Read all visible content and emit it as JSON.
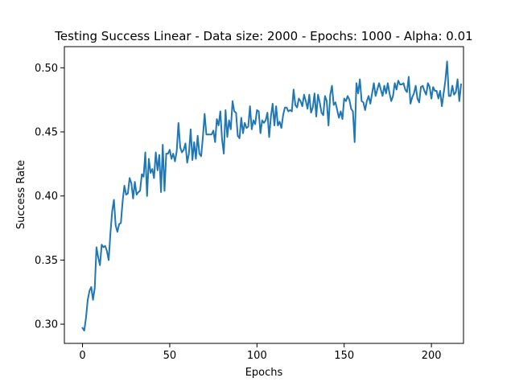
{
  "chart_data": {
    "type": "line",
    "title": "Testing Success Linear - Data size: 2000 - Epochs: 1000 - Alpha: 0.01",
    "xlabel": "Epochs",
    "ylabel": "Success Rate",
    "xlim": [
      -10.4,
      218.4
    ],
    "ylim": [
      0.285,
      0.5165
    ],
    "xticks": [
      0,
      50,
      100,
      150,
      200
    ],
    "xtick_labels": [
      "0",
      "50",
      "100",
      "150",
      "200"
    ],
    "yticks": [
      0.3,
      0.35,
      0.4,
      0.45,
      0.5
    ],
    "ytick_labels": [
      "0.30",
      "0.35",
      "0.40",
      "0.45",
      "0.50"
    ],
    "grid": false,
    "legend": "none",
    "line_color": "#1f77b4",
    "series": [
      {
        "x_start": 0,
        "x_step": 1,
        "values": [
          0.297,
          0.295,
          0.305,
          0.319,
          0.326,
          0.329,
          0.319,
          0.328,
          0.36,
          0.352,
          0.346,
          0.362,
          0.36,
          0.361,
          0.357,
          0.35,
          0.371,
          0.388,
          0.397,
          0.377,
          0.372,
          0.378,
          0.379,
          0.396,
          0.408,
          0.401,
          0.402,
          0.414,
          0.41,
          0.398,
          0.411,
          0.401,
          0.403,
          0.404,
          0.417,
          0.415,
          0.434,
          0.4,
          0.429,
          0.418,
          0.421,
          0.414,
          0.434,
          0.42,
          0.432,
          0.403,
          0.44,
          0.404,
          0.433,
          0.433,
          0.436,
          0.429,
          0.433,
          0.427,
          0.435,
          0.457,
          0.438,
          0.434,
          0.436,
          0.441,
          0.426,
          0.433,
          0.452,
          0.428,
          0.442,
          0.429,
          0.447,
          0.433,
          0.431,
          0.446,
          0.464,
          0.448,
          0.448,
          0.448,
          0.448,
          0.451,
          0.442,
          0.46,
          0.455,
          0.466,
          0.444,
          0.433,
          0.467,
          0.446,
          0.459,
          0.452,
          0.474,
          0.466,
          0.465,
          0.447,
          0.445,
          0.461,
          0.449,
          0.457,
          0.453,
          0.454,
          0.47,
          0.452,
          0.459,
          0.456,
          0.467,
          0.466,
          0.449,
          0.459,
          0.457,
          0.459,
          0.465,
          0.446,
          0.462,
          0.472,
          0.455,
          0.47,
          0.455,
          0.458,
          0.453,
          0.463,
          0.469,
          0.469,
          0.466,
          0.467,
          0.466,
          0.483,
          0.471,
          0.469,
          0.476,
          0.474,
          0.47,
          0.479,
          0.474,
          0.468,
          0.479,
          0.465,
          0.469,
          0.48,
          0.462,
          0.479,
          0.473,
          0.465,
          0.463,
          0.478,
          0.474,
          0.455,
          0.479,
          0.486,
          0.471,
          0.473,
          0.467,
          0.461,
          0.466,
          0.46,
          0.476,
          0.474,
          0.478,
          0.475,
          0.468,
          0.466,
          0.442,
          0.488,
          0.48,
          0.491,
          0.474,
          0.473,
          0.467,
          0.474,
          0.478,
          0.472,
          0.48,
          0.488,
          0.478,
          0.483,
          0.488,
          0.483,
          0.478,
          0.486,
          0.48,
          0.488,
          0.48,
          0.474,
          0.478,
          0.488,
          0.483,
          0.49,
          0.487,
          0.487,
          0.488,
          0.483,
          0.481,
          0.493,
          0.472,
          0.477,
          0.48,
          0.486,
          0.476,
          0.473,
          0.485,
          0.486,
          0.482,
          0.479,
          0.488,
          0.485,
          0.476,
          0.485,
          0.482,
          0.482,
          0.476,
          0.482,
          0.47,
          0.48,
          0.49,
          0.505,
          0.478,
          0.478,
          0.486,
          0.479,
          0.481,
          0.491,
          0.474,
          0.487
        ]
      }
    ]
  }
}
